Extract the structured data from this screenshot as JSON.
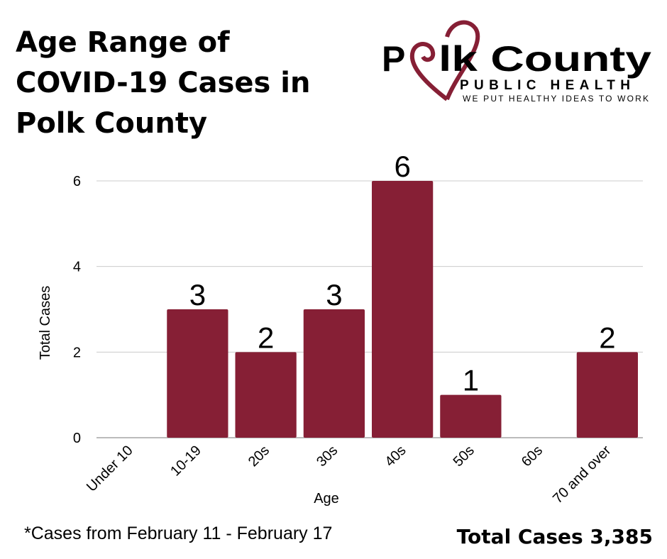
{
  "title": "Age Range of COVID-19 Cases in Polk County",
  "logo": {
    "name": "Polk County",
    "subtitle": "PUBLIC HEALTH",
    "tagline": "WE PUT HEALTHY IDEAS TO WORK"
  },
  "footnote": "*Cases from February 11 - February 17",
  "total": "Total Cases 3,385",
  "colors": {
    "bar": "#861f35",
    "grid": "#cccccc"
  },
  "chart_data": {
    "type": "bar",
    "categories": [
      "Under 10",
      "10-19",
      "20s",
      "30s",
      "40s",
      "50s",
      "60s",
      "70 and over"
    ],
    "values": [
      0,
      3,
      2,
      3,
      6,
      1,
      0,
      2
    ],
    "data_labels": [
      "",
      "3",
      "2",
      "3",
      "6",
      "1",
      "",
      "2"
    ],
    "xlabel": "Age",
    "ylabel": "Total Cases",
    "ylim": [
      0,
      6
    ],
    "yticks": [
      "0",
      "2",
      "4",
      "6"
    ],
    "grid": true
  }
}
